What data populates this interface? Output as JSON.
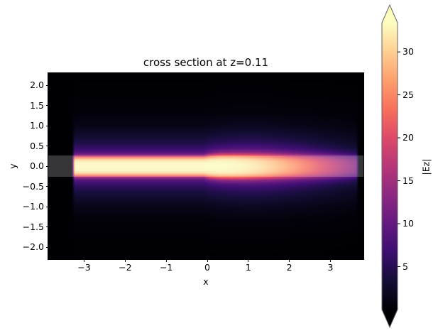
{
  "chart_data": {
    "type": "heatmap",
    "title": "cross section at z=0.11",
    "xlabel": "x",
    "ylabel": "y",
    "xlim": [
      -3.87,
      3.81
    ],
    "ylim": [
      -2.3,
      2.3
    ],
    "grid": false,
    "xticks": {
      "values": [
        -3,
        -2,
        -1,
        0,
        1,
        2,
        3
      ],
      "labels": [
        "−3",
        "−2",
        "−1",
        "0",
        "1",
        "2",
        "3"
      ]
    },
    "yticks": {
      "values": [
        2.0,
        1.5,
        1.0,
        0.5,
        0.0,
        -0.5,
        -1.0,
        -1.5,
        -2.0
      ],
      "labels": [
        "2.0",
        "1.5",
        "1.0",
        "0.5",
        "0.0",
        "−0.5",
        "−1.0",
        "−1.5",
        "−2.0"
      ]
    },
    "colormap": {
      "name": "magma",
      "anchors": [
        "#000004",
        "#140e36",
        "#3b0f70",
        "#641a80",
        "#8c2981",
        "#b73779",
        "#de4968",
        "#f7705c",
        "#fe9f6d",
        "#fecf92",
        "#fcfdbf"
      ]
    },
    "colorbar": {
      "label": "|Ez|",
      "vmin": 0,
      "vmax": 33.4,
      "extend": "both",
      "ticks": {
        "values": [
          5,
          10,
          15,
          20,
          25,
          30
        ],
        "labels": [
          "5",
          "10",
          "15",
          "20",
          "25",
          "30"
        ]
      }
    },
    "field": {
      "symmetric_in_y": true,
      "x_samples": [
        -3.3,
        -3.24,
        -3.0,
        -2.5,
        -2.0,
        -1.5,
        -1.0,
        -0.5,
        -0.1,
        0.05,
        0.3,
        0.6,
        0.9,
        1.2,
        1.5,
        1.8,
        2.1,
        2.4,
        2.7,
        3.0,
        3.3,
        3.55,
        3.62,
        3.68
      ],
      "y_samples_abs": [
        0,
        0.1,
        0.16,
        0.22,
        0.28,
        0.35,
        0.45,
        0.6,
        0.8,
        1.0,
        1.3,
        1.7,
        2.3
      ],
      "values": [
        [
          0,
          0,
          0,
          0,
          0,
          0,
          0,
          0,
          0,
          0,
          0,
          0,
          0
        ],
        [
          33.2,
          32.8,
          30.5,
          24,
          13,
          8.5,
          6.2,
          4.2,
          2.6,
          1.3,
          0.4,
          0.1,
          0
        ],
        [
          33.2,
          32.8,
          30.5,
          24,
          13,
          8.5,
          6.2,
          4.2,
          2.6,
          1.3,
          0.4,
          0.1,
          0
        ],
        [
          33.2,
          32.8,
          30.5,
          24,
          13,
          8.5,
          6.2,
          4.2,
          2.6,
          1.3,
          0.4,
          0.1,
          0
        ],
        [
          33.2,
          32.8,
          30.5,
          24,
          13,
          8.5,
          6.2,
          4.2,
          2.6,
          1.3,
          0.4,
          0.1,
          0
        ],
        [
          33.2,
          32.8,
          30.5,
          24,
          13,
          8.5,
          6.2,
          4.2,
          2.6,
          1.3,
          0.4,
          0.1,
          0
        ],
        [
          33.2,
          32.8,
          30.5,
          24,
          13,
          8.5,
          6.2,
          4.2,
          2.6,
          1.3,
          0.4,
          0.1,
          0
        ],
        [
          33.2,
          32.8,
          30.5,
          24,
          13,
          8.5,
          6.2,
          4.2,
          2.6,
          1.3,
          0.4,
          0.1,
          0
        ],
        [
          33.2,
          32.8,
          30.5,
          24,
          13,
          8.5,
          6.2,
          4.2,
          2.6,
          1.3,
          0.4,
          0.1,
          0
        ],
        [
          33.4,
          33.0,
          31.5,
          27,
          18,
          10.5,
          7.0,
          4.6,
          2.9,
          1.5,
          0.5,
          0.12,
          0
        ],
        [
          33.4,
          33.0,
          32.0,
          28.5,
          21,
          12.5,
          7.8,
          5.0,
          3.2,
          1.7,
          0.55,
          0.15,
          0
        ],
        [
          33.2,
          32.8,
          31.8,
          28.5,
          21.5,
          13,
          8.2,
          5.3,
          3.4,
          1.8,
          0.6,
          0.15,
          0
        ],
        [
          32.8,
          32.3,
          31.0,
          27.8,
          21,
          13.2,
          8.4,
          5.4,
          3.5,
          1.9,
          0.6,
          0.15,
          0
        ],
        [
          31.8,
          31.2,
          29.8,
          26.5,
          20,
          12.8,
          8.3,
          5.4,
          3.5,
          1.9,
          0.6,
          0.15,
          0
        ],
        [
          30.2,
          29.6,
          28.2,
          25,
          18.8,
          12.2,
          8.0,
          5.2,
          3.3,
          1.8,
          0.6,
          0.15,
          0
        ],
        [
          28.2,
          27.6,
          26.2,
          23,
          17.2,
          11.2,
          7.4,
          4.9,
          3.1,
          1.7,
          0.55,
          0.12,
          0
        ],
        [
          26.0,
          25.4,
          24.0,
          21,
          15.6,
          10.2,
          6.8,
          4.5,
          2.8,
          1.5,
          0.5,
          0.1,
          0
        ],
        [
          23.6,
          23.0,
          21.6,
          18.8,
          14,
          9.2,
          6.2,
          4.1,
          2.6,
          1.4,
          0.45,
          0.1,
          0
        ],
        [
          21.0,
          20.4,
          19.2,
          16.6,
          12.4,
          8.2,
          5.5,
          3.6,
          2.3,
          1.2,
          0.4,
          0.1,
          0
        ],
        [
          18.4,
          17.9,
          16.7,
          14.4,
          10.8,
          7.2,
          4.8,
          3.2,
          2.0,
          1.05,
          0.35,
          0.08,
          0
        ],
        [
          15.8,
          15.3,
          14.3,
          12.3,
          9.2,
          6.1,
          4.1,
          2.7,
          1.7,
          0.9,
          0.3,
          0.06,
          0
        ],
        [
          13.6,
          13.2,
          12.3,
          10.6,
          8.0,
          5.3,
          3.6,
          2.3,
          1.5,
          0.8,
          0.25,
          0.05,
          0
        ],
        [
          13.0,
          12.6,
          11.8,
          10.1,
          7.6,
          5.0,
          3.4,
          2.2,
          1.4,
          0.75,
          0.25,
          0.05,
          0
        ],
        [
          0,
          0,
          0,
          0,
          0,
          0,
          0,
          0,
          0,
          0,
          0,
          0,
          0
        ]
      ]
    },
    "overlay": {
      "name": "waveguide-region",
      "y_min": -0.27,
      "y_max": 0.27,
      "color": "rgba(255,255,255,0.21)"
    }
  }
}
